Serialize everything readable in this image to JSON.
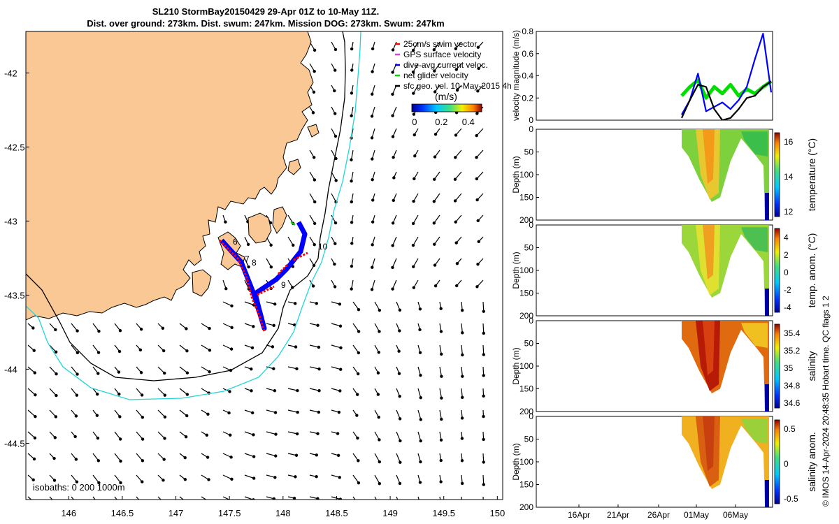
{
  "title_line1": "SL210 StormBay20150429 29-Apr 01Z to 10-May 11Z.",
  "title_line2": "Dist. over ground: 273km. Dist. swum: 247km. Mission DOG: 273km. Swum: 247km",
  "footer_credit": "© IMOS 14-Apr-2024 20:48:35 Hobart time. QC flags 1  2",
  "map": {
    "xlim": [
      145.6,
      150.05
    ],
    "ylim": [
      -44.88,
      -41.72
    ],
    "x_ticks": [
      "146",
      "146.5",
      "147",
      "147.5",
      "148",
      "148.5",
      "149",
      "149.5",
      "150"
    ],
    "y_ticks": [
      "-42",
      "-42.5",
      "-43",
      "-43.5",
      "-44",
      "-44.5"
    ],
    "legend": [
      "25cm/s swim vector",
      "GPS surface velocity",
      "dive-avg current veloc.",
      "net glider velocity",
      "sfc geo. vel. 10-May-2015 4h"
    ],
    "colorbar": {
      "label": "(m/s)",
      "ticks": [
        "0",
        "0.2",
        "0.4"
      ],
      "range": [
        -0.02,
        0.5
      ]
    },
    "isobath_note": "isobaths: 0  200  1000m",
    "track_labels": [
      "6",
      "7",
      "8",
      "9",
      "10"
    ],
    "colors": {
      "land": "#f9c895",
      "isobath_200": "#000000",
      "isobath_1000": "#22d6d6",
      "dive_avg": "#0000ff",
      "swim": "#ff0000",
      "net": "#00dd00",
      "gps": "#e040e0"
    }
  },
  "chart_data": [
    {
      "type": "line",
      "ylabel": "velocity magnitude (m/s)",
      "ylim": [
        0,
        0.8
      ],
      "y_ticks": [
        "0",
        "0.2",
        "0.4",
        "0.6",
        "0.8"
      ],
      "series": [
        {
          "name": "net glider velocity",
          "color": "#00dd00",
          "x": [
            "29-Apr",
            "30-Apr",
            "01-May",
            "02-May",
            "03-May",
            "04-May",
            "05-May",
            "06-May",
            "07-May",
            "08-May",
            "09-May",
            "10-May"
          ],
          "values": [
            0.22,
            0.3,
            0.36,
            0.2,
            0.3,
            0.24,
            0.32,
            0.22,
            0.28,
            0.24,
            0.3,
            0.35
          ]
        },
        {
          "name": "dive-avg current veloc.",
          "color": "#0000ff",
          "x": [
            "29-Apr",
            "30-Apr",
            "01-May",
            "02-May",
            "03-May",
            "04-May",
            "05-May",
            "06-May",
            "07-May",
            "08-May",
            "09-May",
            "10-May"
          ],
          "values": [
            0.05,
            0.18,
            0.42,
            0.08,
            0.12,
            0.16,
            0.1,
            0.18,
            0.3,
            0.55,
            0.78,
            0.25
          ]
        },
        {
          "name": "sfc geo. vel.",
          "color": "#000000",
          "x": [
            "29-Apr",
            "30-Apr",
            "01-May",
            "02-May",
            "03-May",
            "04-May",
            "05-May",
            "06-May",
            "07-May",
            "08-May",
            "09-May",
            "10-May"
          ],
          "values": [
            0.02,
            0.18,
            0.32,
            0.3,
            0.1,
            0.0,
            0.02,
            0.1,
            0.2,
            0.22,
            0.3,
            0.35
          ]
        }
      ]
    },
    {
      "type": "heatmap",
      "ylabel": "Depth (m)",
      "colorbar_label": "temperature (°C)",
      "y_ticks": [
        "0",
        "50",
        "100",
        "150",
        "200"
      ],
      "color_ticks": [
        "12",
        "14",
        "16"
      ]
    },
    {
      "type": "heatmap",
      "ylabel": "Depth (m)",
      "colorbar_label": "temp. anom. (°C)",
      "y_ticks": [
        "0",
        "50",
        "100",
        "150",
        "200"
      ],
      "color_ticks": [
        "-4",
        "-2",
        "0",
        "2",
        "4"
      ]
    },
    {
      "type": "heatmap",
      "ylabel": "Depth (m)",
      "colorbar_label": "salinity",
      "y_ticks": [
        "0",
        "50",
        "100",
        "150",
        "200"
      ],
      "color_ticks": [
        "34.6",
        "34.8",
        "35",
        "35.2",
        "35.4"
      ]
    },
    {
      "type": "heatmap",
      "ylabel": "Depth (m)",
      "colorbar_label": "salinity anom.",
      "y_ticks": [
        "0",
        "50",
        "100",
        "150",
        "200"
      ],
      "color_ticks": [
        "-0.5",
        "0",
        "0.5"
      ]
    }
  ],
  "time_axis_ticks": [
    "16Apr",
    "21Apr",
    "26Apr",
    "01May",
    "06May"
  ]
}
